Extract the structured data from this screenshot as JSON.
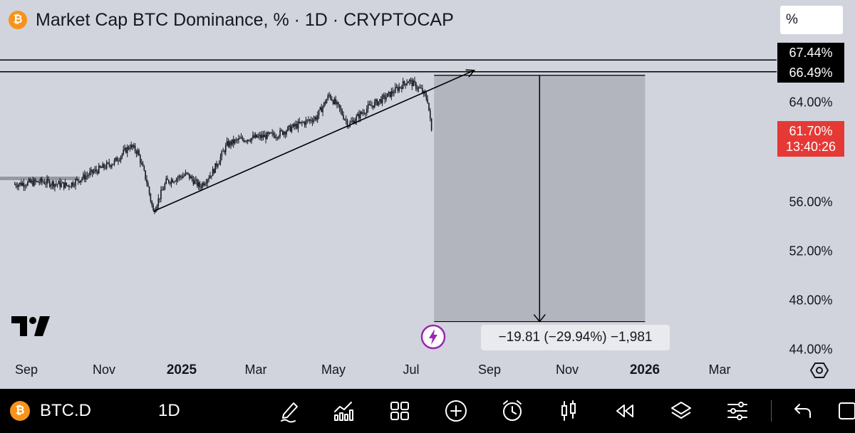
{
  "header": {
    "title": "Market Cap BTC Dominance, % · 1D · CRYPTOCAP",
    "logo_glyph": "₿",
    "unit_box": "%"
  },
  "price_labels": {
    "upper": "67.44%",
    "lower": "66.49%",
    "current_price": "61.70%",
    "countdown": "13:40:26"
  },
  "y_axis_ticks": [
    "64.00%",
    "56.00%",
    "52.00%",
    "48.00%",
    "44.00%"
  ],
  "x_axis_labels": [
    {
      "text": "Sep",
      "bold": false
    },
    {
      "text": "Nov",
      "bold": false
    },
    {
      "text": "2025",
      "bold": true
    },
    {
      "text": "Mar",
      "bold": false
    },
    {
      "text": "May",
      "bold": false
    },
    {
      "text": "Jul",
      "bold": false
    },
    {
      "text": "Sep",
      "bold": false
    },
    {
      "text": "Nov",
      "bold": false
    },
    {
      "text": "2026",
      "bold": true
    },
    {
      "text": "Mar",
      "bold": false
    }
  ],
  "measure_label": "−19.81 (−29.94%) −1,981",
  "colors": {
    "background": "#d1d4dc",
    "candles": "#131722",
    "current_tag": "#e53935",
    "measure_fill": "#b2b5be",
    "toolbar": "#000000",
    "btc_orange": "#f7931a",
    "flash_purple": "#9c27b0"
  },
  "toolbar": {
    "symbol": "BTC.D",
    "interval": "1D",
    "icons": [
      "pencil-drawing-icon",
      "indicators-chart-icon",
      "grid-layout-icon",
      "add-circle-icon",
      "alarm-clock-icon",
      "candles-icon",
      "replay-rewind-icon",
      "layers-icon",
      "settings-sliders-icon",
      "undo-icon"
    ]
  },
  "chart_data": {
    "type": "candlestick",
    "title": "Market Cap BTC Dominance, % · 1D · CRYPTOCAP",
    "xlabel": "",
    "ylabel": "",
    "y_unit": "%",
    "x_ticks": [
      "Sep",
      "Nov",
      "2025",
      "Mar",
      "May",
      "Jul",
      "Sep",
      "Nov",
      "2026",
      "Mar"
    ],
    "y_ticks": [
      44,
      48,
      52,
      56,
      64
    ],
    "ylim": [
      43.5,
      70.5
    ],
    "grid": false,
    "series": [
      {
        "approx_close_points": [
          [
            "2024-08-25",
            57.4
          ],
          [
            "2024-09-15",
            57.6
          ],
          [
            "2024-10-05",
            57.3
          ],
          [
            "2024-10-25",
            58.4
          ],
          [
            "2024-11-10",
            59.2
          ],
          [
            "2024-11-22",
            60.5
          ],
          [
            "2024-11-28",
            60.0
          ],
          [
            "2024-12-05",
            57.6
          ],
          [
            "2024-12-10",
            55.2
          ],
          [
            "2024-12-20",
            57.6
          ],
          [
            "2025-01-05",
            58.2
          ],
          [
            "2025-01-15",
            57.2
          ],
          [
            "2025-01-25",
            58.4
          ],
          [
            "2025-02-05",
            60.6
          ],
          [
            "2025-02-15",
            61.0
          ],
          [
            "2025-03-01",
            61.2
          ],
          [
            "2025-03-15",
            61.4
          ],
          [
            "2025-04-01",
            62.2
          ],
          [
            "2025-04-15",
            62.8
          ],
          [
            "2025-04-25",
            64.6
          ],
          [
            "2025-05-02",
            63.6
          ],
          [
            "2025-05-10",
            62.2
          ],
          [
            "2025-05-25",
            63.6
          ],
          [
            "2025-06-10",
            64.6
          ],
          [
            "2025-06-25",
            65.8
          ],
          [
            "2025-07-05",
            65.0
          ],
          [
            "2025-07-10",
            64.2
          ],
          [
            "2025-07-13",
            61.7
          ]
        ]
      }
    ],
    "drawings": {
      "horizontal_lines": [
        67.44,
        66.49
      ],
      "trend_line": {
        "from": [
          "2024-12-10",
          55.2
        ],
        "to": [
          "2025-08-15",
          66.6
        ]
      },
      "price_range": {
        "from": [
          "2025-07-15",
          66.2
        ],
        "to": [
          "2025-12-25",
          46.3
        ],
        "change": "−19.81 (−29.94%) −1,981"
      }
    },
    "last_price": "61.70%",
    "countdown": "13:40:26"
  }
}
